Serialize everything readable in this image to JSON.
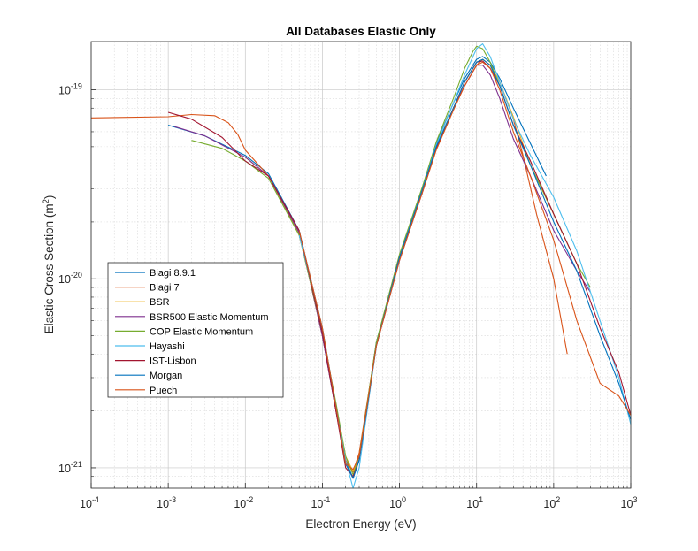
{
  "chart_data": {
    "type": "line",
    "title": "All Databases Elastic Only",
    "xlabel": "Electron Energy (eV)",
    "ylabel_main": "Elastic Cross Section (m",
    "ylabel_sup": "2",
    "ylabel_close": ")",
    "x_scale": "log",
    "y_scale": "log",
    "xlim": [
      0.0001,
      1000
    ],
    "ylim": [
      7.8e-22,
      1.8e-19
    ],
    "x_ticks": [
      {
        "base": "10",
        "exp": "-4",
        "value": 0.0001
      },
      {
        "base": "10",
        "exp": "-3",
        "value": 0.001
      },
      {
        "base": "10",
        "exp": "-2",
        "value": 0.01
      },
      {
        "base": "10",
        "exp": "-1",
        "value": 0.1
      },
      {
        "base": "10",
        "exp": "0",
        "value": 1
      },
      {
        "base": "10",
        "exp": "1",
        "value": 10
      },
      {
        "base": "10",
        "exp": "2",
        "value": 100
      },
      {
        "base": "10",
        "exp": "3",
        "value": 1000
      }
    ],
    "y_ticks": [
      {
        "base": "10",
        "exp": "-19",
        "value": 1e-19
      },
      {
        "base": "10",
        "exp": "-20",
        "value": 1e-20
      },
      {
        "base": "10",
        "exp": "-21",
        "value": 1e-21
      }
    ],
    "grid": true,
    "minor_grid": true,
    "legend_position": "lower-left",
    "series": [
      {
        "name": "Biagi 8.9.1",
        "color": "#0072BD",
        "x": [
          0.001,
          0.003,
          0.01,
          0.02,
          0.05,
          0.1,
          0.15,
          0.2,
          0.25,
          0.3,
          0.5,
          1,
          2,
          3,
          5,
          7,
          10,
          12,
          15,
          20,
          30,
          50,
          80
        ],
        "y": [
          6.5e-20,
          5.7e-20,
          4.5e-20,
          3.6e-20,
          1.8e-20,
          5e-21,
          2e-21,
          1.1e-21,
          8.8e-22,
          1.1e-21,
          4.6e-21,
          1.3e-20,
          3e-20,
          5.2e-20,
          8.5e-20,
          1.15e-19,
          1.45e-19,
          1.5e-19,
          1.4e-19,
          1.15e-19,
          8e-20,
          5.2e-20,
          3.5e-20
        ]
      },
      {
        "name": "Biagi 7",
        "color": "#D95319",
        "x": [
          0.0001,
          0.001,
          0.002,
          0.004,
          0.006,
          0.008,
          0.01,
          0.02,
          0.05,
          0.1,
          0.15,
          0.2,
          0.25,
          0.3,
          0.5,
          1,
          2,
          3,
          5,
          7,
          10,
          12,
          15,
          20,
          30,
          40,
          60,
          100,
          150
        ],
        "y": [
          7.1e-20,
          7.2e-20,
          7.4e-20,
          7.3e-20,
          6.7e-20,
          5.8e-20,
          4.8e-20,
          3.5e-20,
          1.75e-20,
          5e-21,
          2e-21,
          1.1e-21,
          9.5e-22,
          1.2e-21,
          4.5e-21,
          1.3e-20,
          3e-20,
          5e-20,
          8e-20,
          1.05e-19,
          1.35e-19,
          1.45e-19,
          1.35e-19,
          1.1e-19,
          7e-20,
          4.5e-20,
          2.2e-20,
          1e-20,
          4e-21
        ]
      },
      {
        "name": "BSR",
        "color": "#EDB120",
        "x": [
          0.01,
          0.02,
          0.05,
          0.1,
          0.15,
          0.2,
          0.25,
          0.3,
          0.5,
          1,
          2,
          3,
          5,
          7,
          10,
          12,
          15,
          20,
          30,
          50,
          100,
          200
        ],
        "y": [
          4.4e-20,
          3.5e-20,
          1.7e-20,
          5.2e-21,
          2.1e-21,
          1.15e-21,
          9.6e-22,
          1.15e-21,
          4.5e-21,
          1.3e-20,
          3e-20,
          5e-20,
          8e-20,
          1.1e-19,
          1.4e-19,
          1.45e-19,
          1.35e-19,
          1.1e-19,
          7.2e-20,
          4e-20,
          2.2e-20,
          1.2e-20
        ]
      },
      {
        "name": "BSR500 Elastic Momentum",
        "color": "#7E2F8E",
        "x": [
          0.0012,
          0.003,
          0.01,
          0.02,
          0.05,
          0.1,
          0.15,
          0.2,
          0.25,
          0.3,
          0.5,
          1,
          2,
          3,
          5,
          7,
          10,
          12,
          15,
          20,
          30,
          50,
          100,
          200,
          300
        ],
        "y": [
          6.4e-20,
          5.7e-20,
          4.4e-20,
          3.5e-20,
          1.75e-20,
          5e-21,
          2e-21,
          1.05e-21,
          8.8e-22,
          1.1e-21,
          4.4e-21,
          1.25e-20,
          2.9e-20,
          4.9e-20,
          8e-20,
          1.05e-19,
          1.35e-19,
          1.35e-19,
          1.2e-19,
          9e-20,
          5.5e-20,
          3.5e-20,
          1.8e-20,
          1.1e-20,
          8.5e-21
        ]
      },
      {
        "name": "COP Elastic Momentum",
        "color": "#77AC30",
        "x": [
          0.002,
          0.005,
          0.01,
          0.02,
          0.05,
          0.1,
          0.15,
          0.2,
          0.25,
          0.3,
          0.5,
          1,
          2,
          3,
          5,
          7,
          9,
          10,
          12,
          15,
          20,
          30,
          50,
          100,
          200,
          300
        ],
        "y": [
          5.4e-20,
          4.9e-20,
          4.2e-20,
          3.4e-20,
          1.7e-20,
          5.2e-21,
          2.2e-21,
          1.15e-21,
          9.2e-22,
          1.15e-21,
          4.6e-21,
          1.35e-20,
          3.1e-20,
          5.3e-20,
          9e-20,
          1.3e-19,
          1.6e-19,
          1.7e-19,
          1.65e-19,
          1.4e-19,
          1.05e-19,
          6.5e-20,
          4e-20,
          2.2e-20,
          1.2e-20,
          9e-21
        ]
      },
      {
        "name": "Hayashi",
        "color": "#4DBEEE",
        "x": [
          0.05,
          0.1,
          0.15,
          0.2,
          0.25,
          0.3,
          0.5,
          1,
          2,
          3,
          5,
          7,
          10,
          12,
          15,
          20,
          30,
          50,
          100,
          200,
          400,
          700,
          1000
        ],
        "y": [
          1.7e-20,
          5.5e-21,
          2.1e-21,
          1.1e-21,
          7.8e-22,
          1e-21,
          4.4e-21,
          1.3e-20,
          3e-20,
          5.1e-20,
          8.5e-20,
          1.2e-19,
          1.65e-19,
          1.75e-19,
          1.5e-19,
          1.1e-19,
          7e-20,
          4.5e-20,
          2.7e-20,
          1.4e-20,
          6e-21,
          3e-21,
          1.7e-21
        ]
      },
      {
        "name": "IST-Lisbon",
        "color": "#A2142F",
        "x": [
          0.001,
          0.002,
          0.005,
          0.01,
          0.02,
          0.05,
          0.1,
          0.15,
          0.2,
          0.25,
          0.3,
          0.5,
          1,
          2,
          3,
          5,
          7,
          10,
          12,
          15,
          20,
          30,
          50,
          100,
          200,
          400,
          700,
          1000
        ],
        "y": [
          7.6e-20,
          7e-20,
          5.6e-20,
          4.2e-20,
          3.5e-20,
          1.8e-20,
          5.2e-21,
          2e-21,
          1e-21,
          9e-22,
          1.1e-21,
          4.4e-21,
          1.3e-20,
          2.9e-20,
          4.9e-20,
          8e-20,
          1.1e-19,
          1.4e-19,
          1.42e-19,
          1.3e-19,
          1.05e-19,
          6.5e-20,
          4.2e-20,
          2.2e-20,
          1.2e-20,
          5.5e-21,
          3.2e-21,
          1.9e-21
        ]
      },
      {
        "name": "Morgan",
        "color": "#0072BD",
        "x": [
          0.05,
          0.1,
          0.15,
          0.2,
          0.25,
          0.3,
          0.5,
          1,
          2,
          3,
          5,
          7,
          10,
          12,
          15,
          20,
          30,
          50,
          100,
          200,
          400,
          700,
          1000
        ],
        "y": [
          1.8e-20,
          5.5e-21,
          2.1e-21,
          1.05e-21,
          8.8e-22,
          1.1e-21,
          4.4e-21,
          1.3e-20,
          3e-20,
          5e-20,
          8e-20,
          1.1e-19,
          1.4e-19,
          1.45e-19,
          1.35e-19,
          1.05e-19,
          6.5e-20,
          4e-20,
          2e-20,
          1.1e-20,
          5e-21,
          2.8e-21,
          1.8e-21
        ]
      },
      {
        "name": "Puech",
        "color": "#D95319",
        "x": [
          0.05,
          0.1,
          0.15,
          0.2,
          0.25,
          0.3,
          0.5,
          1,
          2,
          3,
          5,
          7,
          10,
          12,
          15,
          20,
          30,
          50,
          100,
          200,
          400,
          700,
          1000
        ],
        "y": [
          1.8e-20,
          5.5e-21,
          2.1e-21,
          1.05e-21,
          9.8e-22,
          1.15e-21,
          4.4e-21,
          1.25e-20,
          2.9e-20,
          4.8e-20,
          7.8e-20,
          1.05e-19,
          1.35e-19,
          1.4e-19,
          1.3e-19,
          1e-19,
          6e-20,
          3.5e-20,
          1.6e-20,
          6e-21,
          2.8e-21,
          2.4e-21,
          1.9e-21
        ]
      }
    ]
  }
}
